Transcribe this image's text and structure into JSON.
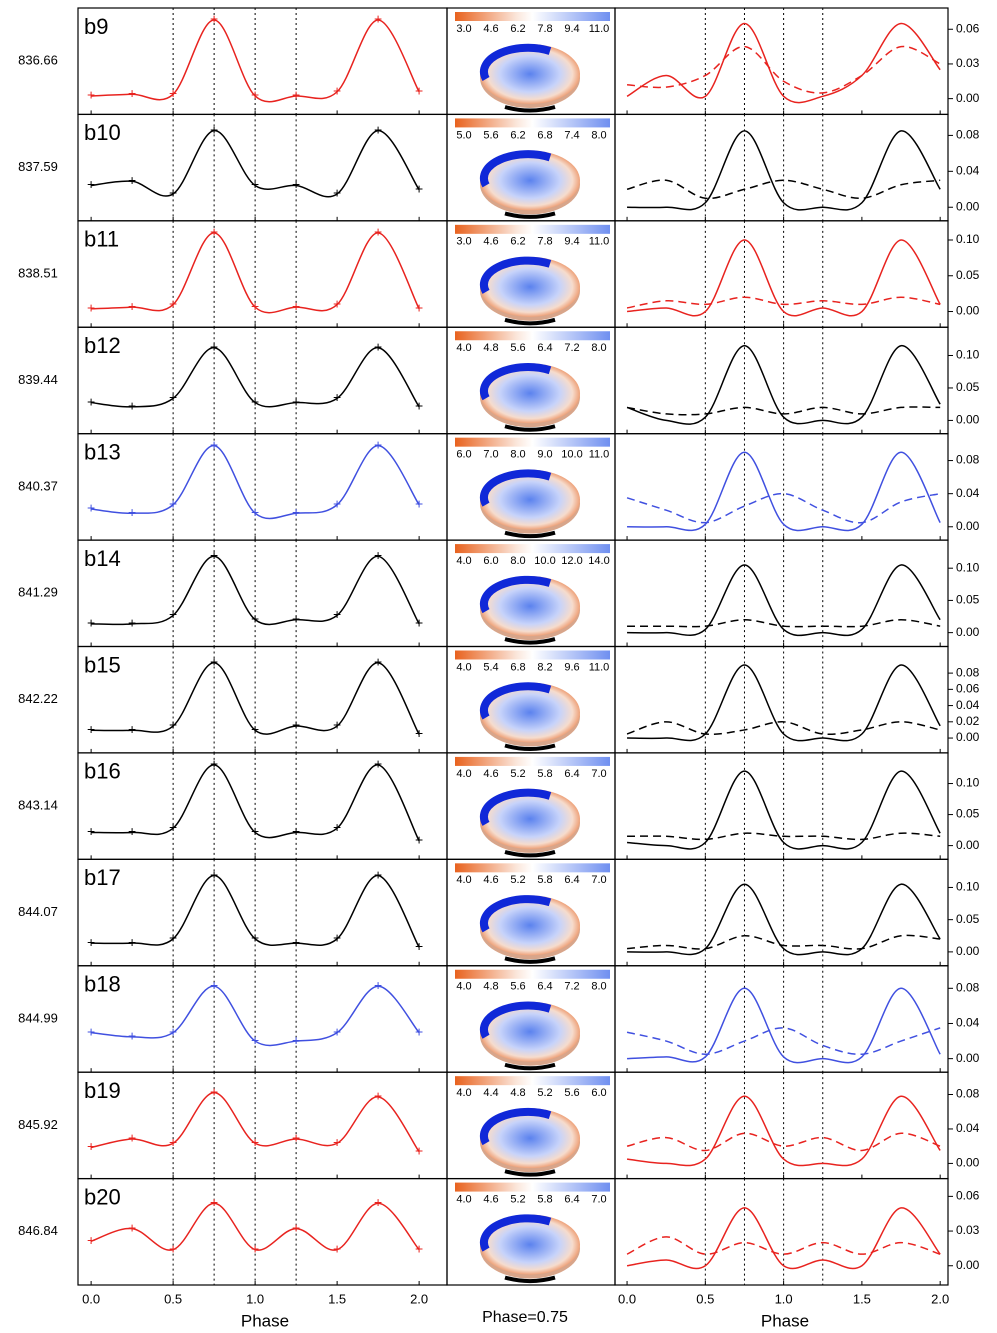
{
  "chart_data": {
    "type": "line",
    "x": [
      0,
      0.25,
      0.5,
      0.75,
      1.0,
      1.25,
      1.5,
      1.75,
      2.0
    ],
    "light_xlim": [
      -0.08,
      2.17
    ],
    "model_xlim": [
      -0.077,
      2.05
    ],
    "xticks": [
      {
        "value": 0,
        "label": "0.0"
      },
      {
        "value": 0.5,
        "label": "0.5"
      },
      {
        "value": 1,
        "label": "1.0"
      },
      {
        "value": 1.5,
        "label": "1.5"
      },
      {
        "value": 2,
        "label": "2.0"
      }
    ],
    "vlines": [
      0.5,
      0.75,
      1.0,
      1.25
    ],
    "x_label": "Phase",
    "middle_label": "Phase=0.75",
    "rows": [
      {
        "name": "b9",
        "date": "836.66",
        "color": "#e8231f",
        "fit": [
          0.1,
          0.12,
          0.12,
          1,
          0.1,
          0.1,
          0.15,
          1,
          0.15
        ],
        "cbar": [
          "3.0",
          "4.6",
          "6.2",
          "7.8",
          "9.4",
          "11.0"
        ],
        "ylim": [
          -0.005,
          0.068
        ],
        "yticks": [
          {
            "value": 0,
            "label": "0.00"
          },
          {
            "value": 0.03,
            "label": "0.03"
          },
          {
            "value": 0.06,
            "label": "0.06"
          }
        ],
        "series": [
          {
            "dash": "solid",
            "values": [
              0.002,
              0.02,
              0.002,
              0.065,
              0.002,
              0.002,
              0.02,
              0.065,
              0.025
            ]
          },
          {
            "dash": "dashed",
            "values": [
              0.012,
              0.01,
              0.02,
              0.045,
              0.015,
              0.005,
              0.02,
              0.045,
              0.03
            ]
          }
        ]
      },
      {
        "name": "b10",
        "date": "837.59",
        "color": "#000000",
        "fit": [
          0.3,
          0.35,
          0.2,
          0.95,
          0.3,
          0.3,
          0.2,
          0.95,
          0.25
        ],
        "cbar": [
          "5.0",
          "5.6",
          "6.2",
          "6.8",
          "7.4",
          "8.0"
        ],
        "ylim": [
          -0.004,
          0.09
        ],
        "yticks": [
          {
            "value": 0,
            "label": "0.00"
          },
          {
            "value": 0.04,
            "label": "0.04"
          },
          {
            "value": 0.08,
            "label": "0.08"
          }
        ],
        "series": [
          {
            "dash": "solid",
            "values": [
              0,
              0,
              0.005,
              0.085,
              0.005,
              0,
              0.005,
              0.085,
              0.02
            ]
          },
          {
            "dash": "dashed",
            "values": [
              0.02,
              0.03,
              0.01,
              0.02,
              0.03,
              0.02,
              0.01,
              0.025,
              0.03
            ]
          }
        ]
      },
      {
        "name": "b11",
        "date": "838.51",
        "color": "#e8231f",
        "fit": [
          0.1,
          0.12,
          0.15,
          1,
          0.12,
          0.12,
          0.15,
          1,
          0.1
        ],
        "cbar": [
          "3.0",
          "4.6",
          "6.2",
          "7.8",
          "9.4",
          "11.0"
        ],
        "ylim": [
          -0.008,
          0.11
        ],
        "yticks": [
          {
            "value": 0,
            "label": "0.00"
          },
          {
            "value": 0.05,
            "label": "0.05"
          },
          {
            "value": 0.1,
            "label": "0.10"
          }
        ],
        "series": [
          {
            "dash": "solid",
            "values": [
              0,
              0.005,
              0,
              0.1,
              0,
              0.005,
              0,
              0.1,
              0.01
            ]
          },
          {
            "dash": "dashed",
            "values": [
              0.005,
              0.015,
              0.01,
              0.02,
              0.01,
              0.015,
              0.01,
              0.02,
              0.01
            ]
          }
        ]
      },
      {
        "name": "b12",
        "date": "839.44",
        "color": "#000000",
        "fit": [
          0.25,
          0.2,
          0.3,
          0.9,
          0.25,
          0.25,
          0.3,
          0.9,
          0.2
        ],
        "cbar": [
          "4.0",
          "4.8",
          "5.6",
          "6.4",
          "7.2",
          "8.0"
        ],
        "ylim": [
          -0.005,
          0.125
        ],
        "yticks": [
          {
            "value": 0,
            "label": "0.00"
          },
          {
            "value": 0.05,
            "label": "0.05"
          },
          {
            "value": 0.1,
            "label": "0.10"
          }
        ],
        "series": [
          {
            "dash": "solid",
            "values": [
              0.02,
              0,
              0.005,
              0.115,
              0.005,
              0,
              0.005,
              0.115,
              0.025
            ]
          },
          {
            "dash": "dashed",
            "values": [
              0.02,
              0.01,
              0.01,
              0.02,
              0.01,
              0.02,
              0.01,
              0.02,
              0.02
            ]
          }
        ]
      },
      {
        "name": "b13",
        "date": "840.37",
        "color": "#4050e0",
        "fit": [
          0.25,
          0.2,
          0.3,
          1,
          0.2,
          0.2,
          0.3,
          1,
          0.3
        ],
        "cbar": [
          "6.0",
          "7.0",
          "8.0",
          "9.0",
          "10.0",
          "11.0"
        ],
        "ylim": [
          -0.004,
          0.098
        ],
        "yticks": [
          {
            "value": 0,
            "label": "0.00"
          },
          {
            "value": 0.04,
            "label": "0.04"
          },
          {
            "value": 0.08,
            "label": "0.08"
          }
        ],
        "series": [
          {
            "dash": "solid",
            "values": [
              0,
              0,
              0.003,
              0.09,
              0.003,
              0,
              0.003,
              0.09,
              0.005
            ]
          },
          {
            "dash": "dashed",
            "values": [
              0.035,
              0.02,
              0.005,
              0.025,
              0.04,
              0.02,
              0.005,
              0.03,
              0.04
            ]
          }
        ]
      },
      {
        "name": "b14",
        "date": "841.29",
        "color": "#000000",
        "fit": [
          0.15,
          0.15,
          0.25,
          0.95,
          0.2,
          0.2,
          0.25,
          0.95,
          0.15
        ],
        "cbar": [
          "4.0",
          "6.0",
          "8.0",
          "10.0",
          "12.0",
          "14.0"
        ],
        "ylim": [
          -0.006,
          0.125
        ],
        "yticks": [
          {
            "value": 0,
            "label": "0.00"
          },
          {
            "value": 0.05,
            "label": "0.05"
          },
          {
            "value": 0.1,
            "label": "0.10"
          }
        ],
        "series": [
          {
            "dash": "solid",
            "values": [
              0,
              0,
              0.005,
              0.105,
              0.005,
              0,
              0.005,
              0.105,
              0.02
            ]
          },
          {
            "dash": "dashed",
            "values": [
              0.01,
              0.01,
              0.01,
              0.02,
              0.01,
              0.01,
              0.01,
              0.02,
              0.01
            ]
          }
        ]
      },
      {
        "name": "b15",
        "date": "842.22",
        "color": "#000000",
        "fit": [
          0.15,
          0.15,
          0.2,
          0.95,
          0.15,
          0.2,
          0.2,
          0.95,
          0.1
        ],
        "cbar": [
          "4.0",
          "5.4",
          "6.8",
          "8.2",
          "9.6",
          "11.0"
        ],
        "ylim": [
          -0.006,
          0.098
        ],
        "yticks": [
          {
            "value": 0,
            "label": "0.00"
          },
          {
            "value": 0.02,
            "label": "0.02"
          },
          {
            "value": 0.04,
            "label": "0.04"
          },
          {
            "value": 0.06,
            "label": "0.06"
          },
          {
            "value": 0.08,
            "label": "0.08"
          }
        ],
        "series": [
          {
            "dash": "solid",
            "values": [
              0,
              0,
              0.005,
              0.09,
              0.005,
              0,
              0.005,
              0.09,
              0.015
            ]
          },
          {
            "dash": "dashed",
            "values": [
              0.005,
              0.02,
              0.005,
              0.01,
              0.02,
              0.005,
              0.01,
              0.02,
              0.01
            ]
          }
        ]
      },
      {
        "name": "b16",
        "date": "843.14",
        "color": "#000000",
        "fit": [
          0.2,
          0.2,
          0.25,
          1,
          0.2,
          0.2,
          0.25,
          1,
          0.1
        ],
        "cbar": [
          "4.0",
          "4.6",
          "5.2",
          "5.8",
          "6.4",
          "7.0"
        ],
        "ylim": [
          -0.006,
          0.13
        ],
        "yticks": [
          {
            "value": 0,
            "label": "0.00"
          },
          {
            "value": 0.05,
            "label": "0.05"
          },
          {
            "value": 0.1,
            "label": "0.10"
          }
        ],
        "series": [
          {
            "dash": "solid",
            "values": [
              0.005,
              0,
              0.005,
              0.12,
              0.005,
              0,
              0.005,
              0.12,
              0.02
            ]
          },
          {
            "dash": "dashed",
            "values": [
              0.015,
              0.015,
              0.01,
              0.02,
              0.015,
              0.015,
              0.01,
              0.02,
              0.015
            ]
          }
        ]
      },
      {
        "name": "b17",
        "date": "844.07",
        "color": "#000000",
        "fit": [
          0.15,
          0.15,
          0.2,
          0.95,
          0.2,
          0.15,
          0.2,
          0.95,
          0.1
        ],
        "cbar": [
          "4.0",
          "4.6",
          "5.2",
          "5.8",
          "6.4",
          "7.0"
        ],
        "ylim": [
          -0.006,
          0.125
        ],
        "yticks": [
          {
            "value": 0,
            "label": "0.00"
          },
          {
            "value": 0.05,
            "label": "0.05"
          },
          {
            "value": 0.1,
            "label": "0.10"
          }
        ],
        "series": [
          {
            "dash": "solid",
            "values": [
              0,
              0,
              0.005,
              0.105,
              0.005,
              0,
              0.005,
              0.105,
              0.02
            ]
          },
          {
            "dash": "dashed",
            "values": [
              0.005,
              0.01,
              0.005,
              0.025,
              0.01,
              0.01,
              0.005,
              0.025,
              0.02
            ]
          }
        ]
      },
      {
        "name": "b18",
        "date": "844.99",
        "color": "#4050e0",
        "fit": [
          0.35,
          0.3,
          0.35,
          0.9,
          0.25,
          0.25,
          0.35,
          0.9,
          0.35
        ],
        "cbar": [
          "4.0",
          "4.8",
          "5.6",
          "6.4",
          "7.2",
          "8.0"
        ],
        "ylim": [
          -0.004,
          0.092
        ],
        "yticks": [
          {
            "value": 0,
            "label": "0.00"
          },
          {
            "value": 0.04,
            "label": "0.04"
          },
          {
            "value": 0.08,
            "label": "0.08"
          }
        ],
        "series": [
          {
            "dash": "solid",
            "values": [
              0,
              0.002,
              0.002,
              0.08,
              0.002,
              0,
              0.002,
              0.08,
              0.005
            ]
          },
          {
            "dash": "dashed",
            "values": [
              0.03,
              0.02,
              0.005,
              0.02,
              0.035,
              0.015,
              0.005,
              0.02,
              0.035
            ]
          }
        ]
      },
      {
        "name": "b19",
        "date": "845.92",
        "color": "#e8231f",
        "fit": [
          0.25,
          0.35,
          0.3,
          0.9,
          0.3,
          0.35,
          0.3,
          0.85,
          0.2
        ],
        "cbar": [
          "4.0",
          "4.4",
          "4.8",
          "5.2",
          "5.6",
          "6.0"
        ],
        "ylim": [
          -0.006,
          0.092
        ],
        "yticks": [
          {
            "value": 0,
            "label": "0.00"
          },
          {
            "value": 0.04,
            "label": "0.04"
          },
          {
            "value": 0.08,
            "label": "0.08"
          }
        ],
        "series": [
          {
            "dash": "solid",
            "values": [
              0.005,
              0,
              0.005,
              0.078,
              0.005,
              0,
              0.005,
              0.078,
              0.015
            ]
          },
          {
            "dash": "dashed",
            "values": [
              0.02,
              0.03,
              0.015,
              0.035,
              0.02,
              0.03,
              0.015,
              0.035,
              0.02
            ]
          }
        ]
      },
      {
        "name": "b20",
        "date": "846.84",
        "color": "#e8231f",
        "fit": [
          0.4,
          0.55,
          0.3,
          0.85,
          0.3,
          0.55,
          0.3,
          0.85,
          0.3
        ],
        "cbar": [
          "4.0",
          "4.6",
          "5.2",
          "5.8",
          "6.4",
          "7.0"
        ],
        "ylim": [
          -0.008,
          0.065
        ],
        "yticks": [
          {
            "value": 0,
            "label": "0.00"
          },
          {
            "value": 0.03,
            "label": "0.03"
          },
          {
            "value": 0.06,
            "label": "0.06"
          }
        ],
        "series": [
          {
            "dash": "solid",
            "values": [
              0,
              0.005,
              0,
              0.05,
              0,
              0.005,
              0,
              0.05,
              0.01
            ]
          },
          {
            "dash": "dashed",
            "values": [
              0.01,
              0.025,
              0.01,
              0.02,
              0.01,
              0.02,
              0.01,
              0.02,
              0.01
            ]
          }
        ]
      }
    ]
  }
}
